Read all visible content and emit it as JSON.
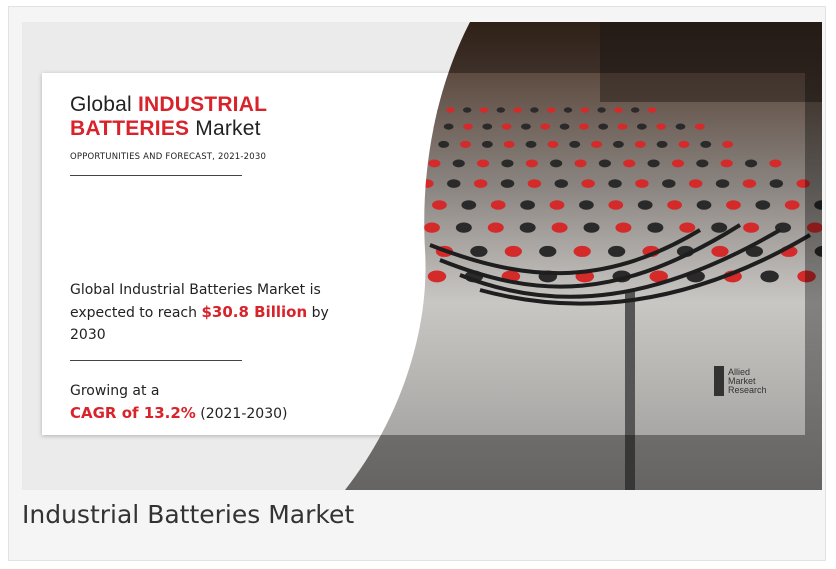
{
  "headline": {
    "pre": "Global",
    "em1": "INDUSTRIAL",
    "em2": "BATTERIES",
    "post": "Market"
  },
  "subtitle": "OPPORTUNITIES AND FORECAST, 2021-2030",
  "reach": {
    "text1": "Global Industrial Batteries Market is expected to reach",
    "amount": "$30.8 Billion",
    "text2": "by 2030"
  },
  "growth": {
    "text1": "Growing at a",
    "cagr": "CAGR of 13.2%",
    "period": "(2021-2030)"
  },
  "logo": {
    "line1": "Allied",
    "line2": "Market",
    "line3": "Research"
  },
  "caption": "Industrial Batteries Market"
}
